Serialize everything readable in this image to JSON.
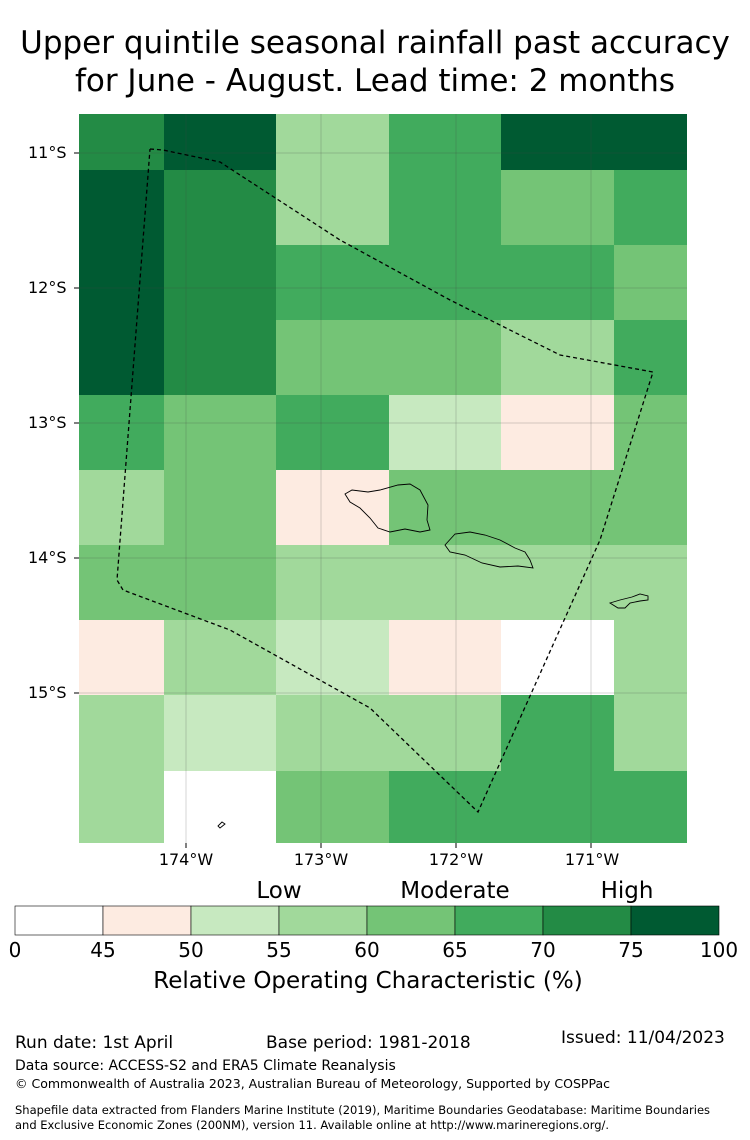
{
  "title": {
    "line1": "Upper quintile seasonal rainfall past accuracy",
    "line2": "for June - August. Lead time: 2 months"
  },
  "map": {
    "lat_labels": [
      "11°S",
      "12°S",
      "13°S",
      "14°S",
      "15°S"
    ],
    "lon_labels": [
      "174°W",
      "173°W",
      "172°W",
      "171°W"
    ],
    "grid_colors_rows_top_to_bottom": [
      [
        "#238b45",
        "#005a32",
        "#a1d99b",
        "#41ab5d",
        "#005a32",
        "#005a32"
      ],
      [
        "#005a32",
        "#238b45",
        "#a1d99b",
        "#41ab5d",
        "#74c476",
        "#41ab5d"
      ],
      [
        "#005a32",
        "#238b45",
        "#41ab5d",
        "#41ab5d",
        "#41ab5d",
        "#74c476"
      ],
      [
        "#005a32",
        "#238b45",
        "#74c476",
        "#74c476",
        "#a1d99b",
        "#41ab5d"
      ],
      [
        "#41ab5d",
        "#74c476",
        "#41ab5d",
        "#c7e9c0",
        "#fdebe1",
        "#74c476"
      ],
      [
        "#a1d99b",
        "#74c476",
        "#fdebe1",
        "#74c476",
        "#74c476",
        "#74c476"
      ],
      [
        "#74c476",
        "#74c476",
        "#a1d99b",
        "#a1d99b",
        "#a1d99b",
        "#a1d99b"
      ],
      [
        "#fdebe1",
        "#a1d99b",
        "#c7e9c0",
        "#fdebe1",
        "#ffffff",
        "#a1d99b"
      ],
      [
        "#a1d99b",
        "#c7e9c0",
        "#a1d99b",
        "#a1d99b",
        "#41ab5d",
        "#a1d99b"
      ],
      [
        "#a1d99b",
        "#ffffff",
        "#74c476",
        "#41ab5d",
        "#41ab5d",
        "#41ab5d"
      ]
    ]
  },
  "colorbar": {
    "category_labels": [
      "Low",
      "Moderate",
      "High"
    ],
    "ticks": [
      "0",
      "45",
      "50",
      "55",
      "60",
      "65",
      "70",
      "75",
      "100"
    ],
    "colors": [
      "#ffffff",
      "#fdebe1",
      "#c7e9c0",
      "#a1d99b",
      "#74c476",
      "#41ab5d",
      "#238b45",
      "#005a32"
    ],
    "title": "Relative Operating Characteristic (%)"
  },
  "footer": {
    "run_date": "Run date: 1st April",
    "base_period": "Base period: 1981-2018",
    "issued": "Issued: 11/04/2023",
    "data_source": "Data source: ACCESS-S2 and ERA5 Climate Reanalysis",
    "copyright": "© Commonwealth of Australia 2023, Australian Bureau of Meteorology, Supported by COSPPac",
    "shapefile_line1": "Shapefile data extracted from Flanders Marine Institute (2019), Maritime Boundaries Geodatabase: Maritime Boundaries",
    "shapefile_line2": "and Exclusive Economic Zones (200NM), version 11. Available online at http://www.marineregions.org/."
  }
}
